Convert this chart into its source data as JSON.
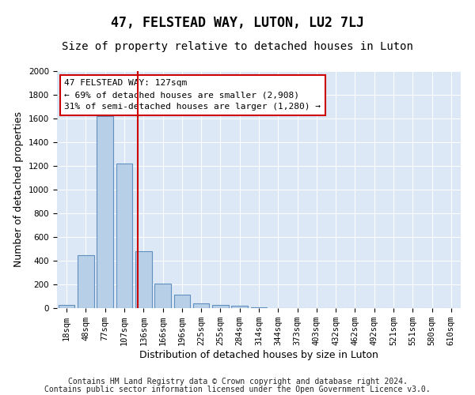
{
  "title": "47, FELSTEAD WAY, LUTON, LU2 7LJ",
  "subtitle": "Size of property relative to detached houses in Luton",
  "xlabel": "Distribution of detached houses by size in Luton",
  "ylabel": "Number of detached properties",
  "categories": [
    "18sqm",
    "48sqm",
    "77sqm",
    "107sqm",
    "136sqm",
    "166sqm",
    "196sqm",
    "225sqm",
    "255sqm",
    "284sqm",
    "314sqm",
    "344sqm",
    "373sqm",
    "403sqm",
    "432sqm",
    "462sqm",
    "492sqm",
    "521sqm",
    "551sqm",
    "580sqm",
    "610sqm"
  ],
  "values": [
    25,
    450,
    1620,
    1220,
    480,
    210,
    115,
    40,
    25,
    18,
    10,
    0,
    0,
    0,
    0,
    0,
    0,
    0,
    0,
    0,
    0
  ],
  "bar_color": "#b8cfe8",
  "bar_edge_color": "#6090c0",
  "vline_color": "#cc0000",
  "vline_x": 3.68,
  "annotation_line1": "47 FELSTEAD WAY: 127sqm",
  "annotation_line2": "← 69% of detached houses are smaller (2,908)",
  "annotation_line3": "31% of semi-detached houses are larger (1,280) →",
  "ylim": [
    0,
    2000
  ],
  "yticks": [
    0,
    200,
    400,
    600,
    800,
    1000,
    1200,
    1400,
    1600,
    1800,
    2000
  ],
  "footer_line1": "Contains HM Land Registry data © Crown copyright and database right 2024.",
  "footer_line2": "Contains public sector information licensed under the Open Government Licence v3.0.",
  "bg_color": "#dce8f5",
  "title_fontsize": 12,
  "subtitle_fontsize": 10,
  "label_fontsize": 9,
  "tick_fontsize": 7.5,
  "ann_fontsize": 8,
  "footer_fontsize": 7
}
